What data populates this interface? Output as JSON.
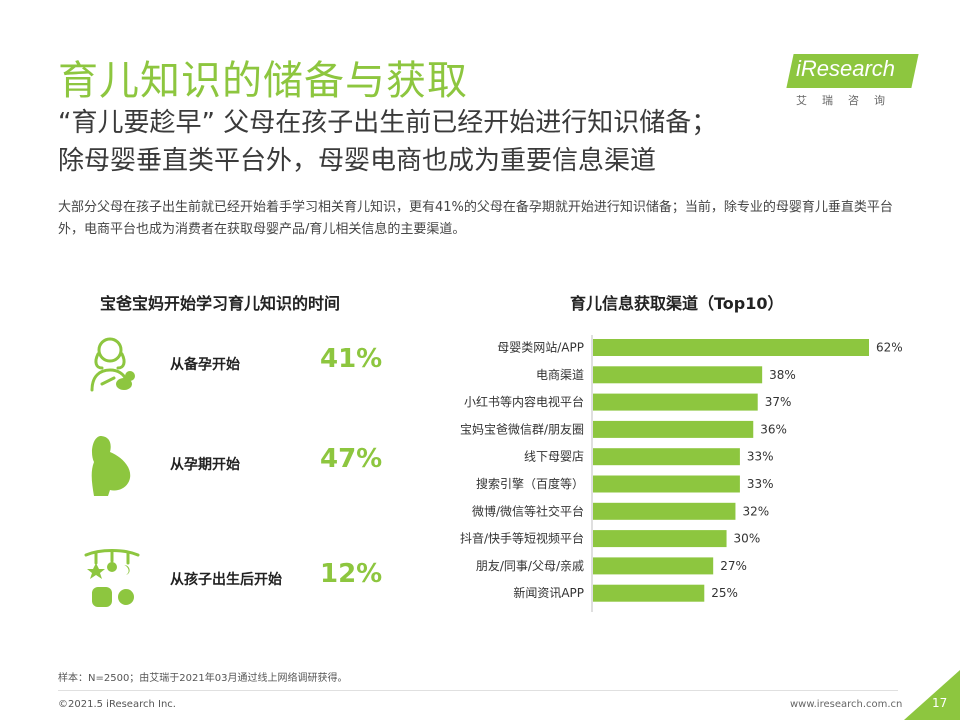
{
  "header": {
    "title": "育儿知识的储备与获取",
    "subtitle_line1": "“育儿要趁早” 父母在孩子出生前已经开始进行知识储备；",
    "subtitle_line2": "除母婴垂直类平台外，母婴电商也成为重要信息渠道",
    "intro": "大部分父母在孩子出生前就已经开始着手学习相关育儿知识，更有41%的父母在备孕期就开始进行知识储备；当前，除专业的母婴育儿垂直类平台外，电商平台也成为消费者在获取母婴产品/育儿相关信息的主要渠道。"
  },
  "logo": {
    "text": "iResearch",
    "sub": "艾瑞咨询"
  },
  "left_panel": {
    "title": "宝爸宝妈开始学习育儿知识的时间",
    "stages": [
      {
        "label": "从备孕开始",
        "value": "41%",
        "icon": "mother-baby-icon"
      },
      {
        "label": "从孕期开始",
        "value": "47%",
        "icon": "pregnant-icon"
      },
      {
        "label": "从孩子出生后开始",
        "value": "12%",
        "icon": "crib-mobile-icon"
      }
    ]
  },
  "chart_data": {
    "type": "bar",
    "orientation": "horizontal",
    "title": "育儿信息获取渠道（Top10）",
    "categories": [
      "母婴类网站/APP",
      "电商渠道",
      "小红书等内容电视平台",
      "宝妈宝爸微信群/朋友圈",
      "线下母婴店",
      "搜索引擎（百度等）",
      "微博/微信等社交平台",
      "抖音/快手等短视频平台",
      "朋友/同事/父母/亲戚",
      "新闻资讯APP"
    ],
    "values": [
      62,
      38,
      37,
      36,
      33,
      33,
      32,
      30,
      27,
      25
    ],
    "value_labels": [
      "62%",
      "38%",
      "37%",
      "36%",
      "33%",
      "33%",
      "32%",
      "30%",
      "27%",
      "25%"
    ],
    "xlim": [
      0,
      62
    ],
    "bar_color": "#8dc63f"
  },
  "footer": {
    "note": "样本：N=2500；由艾瑞于2021年03月通过线上网络调研获得。",
    "copyright": "©2021.5 iResearch Inc.",
    "website": "www.iresearch.com.cn",
    "page": "17"
  },
  "colors": {
    "accent": "#8dc63f",
    "text": "#333333"
  }
}
